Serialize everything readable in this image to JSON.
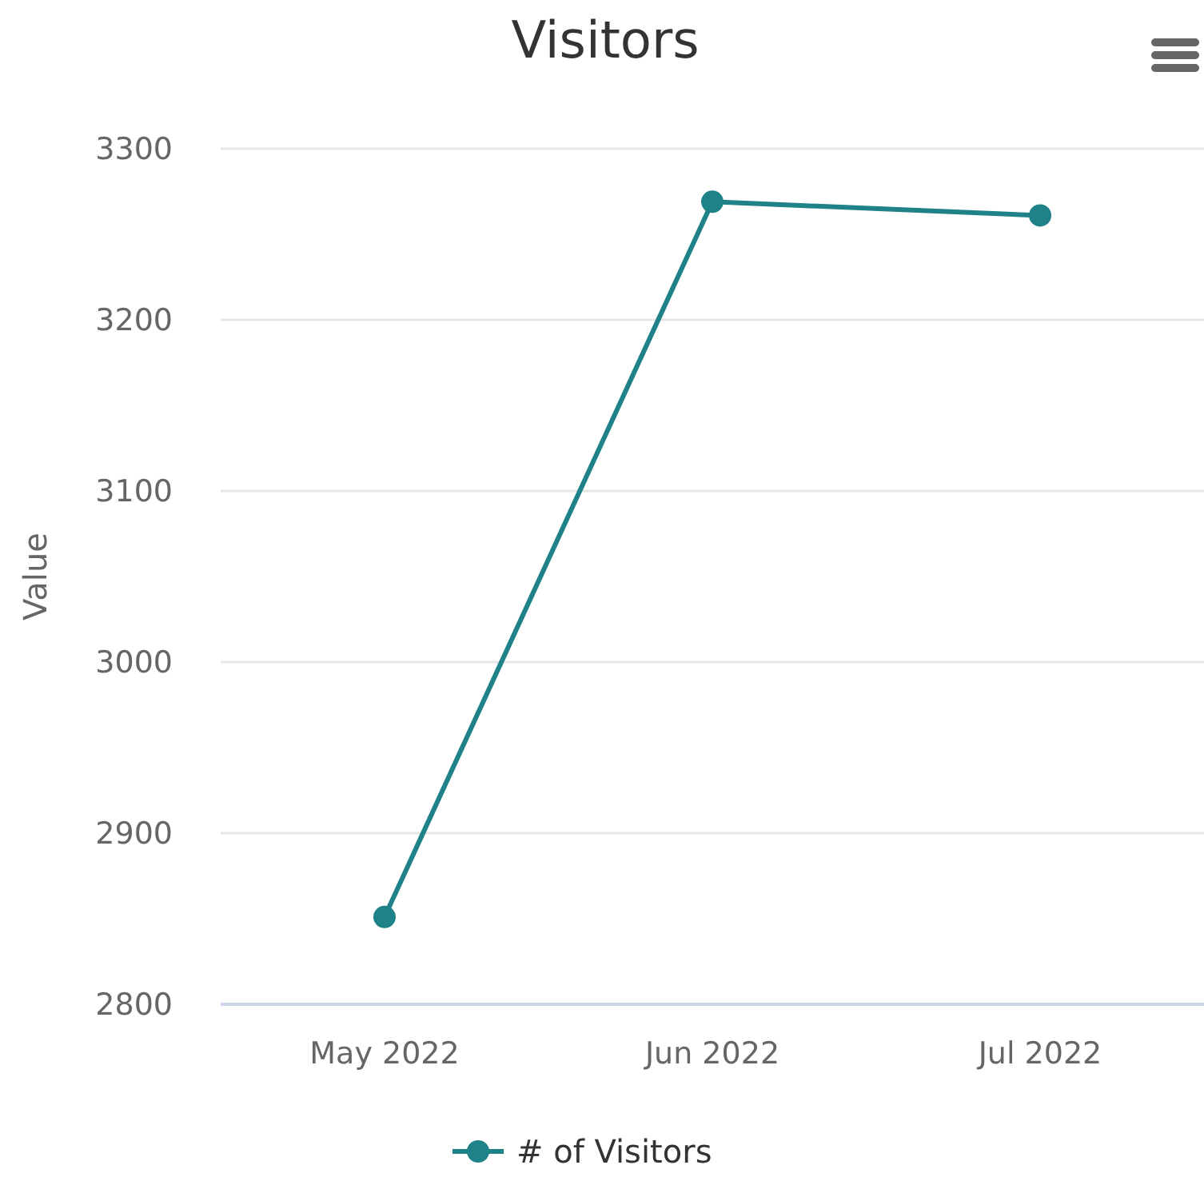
{
  "chart_data": {
    "type": "line",
    "title": "Visitors",
    "ylabel": "Value",
    "categories": [
      "May 2022",
      "Jun 2022",
      "Jul 2022"
    ],
    "series": [
      {
        "name": "# of Visitors",
        "color": "#1f8289",
        "values": [
          2851,
          3269,
          3261
        ]
      }
    ],
    "ylim": [
      2800,
      3300
    ],
    "yticks": [
      2800,
      2900,
      3000,
      3100,
      3200,
      3300
    ],
    "grid": "y",
    "legend": "bottom",
    "marker": "circle",
    "line_style": "solid"
  }
}
